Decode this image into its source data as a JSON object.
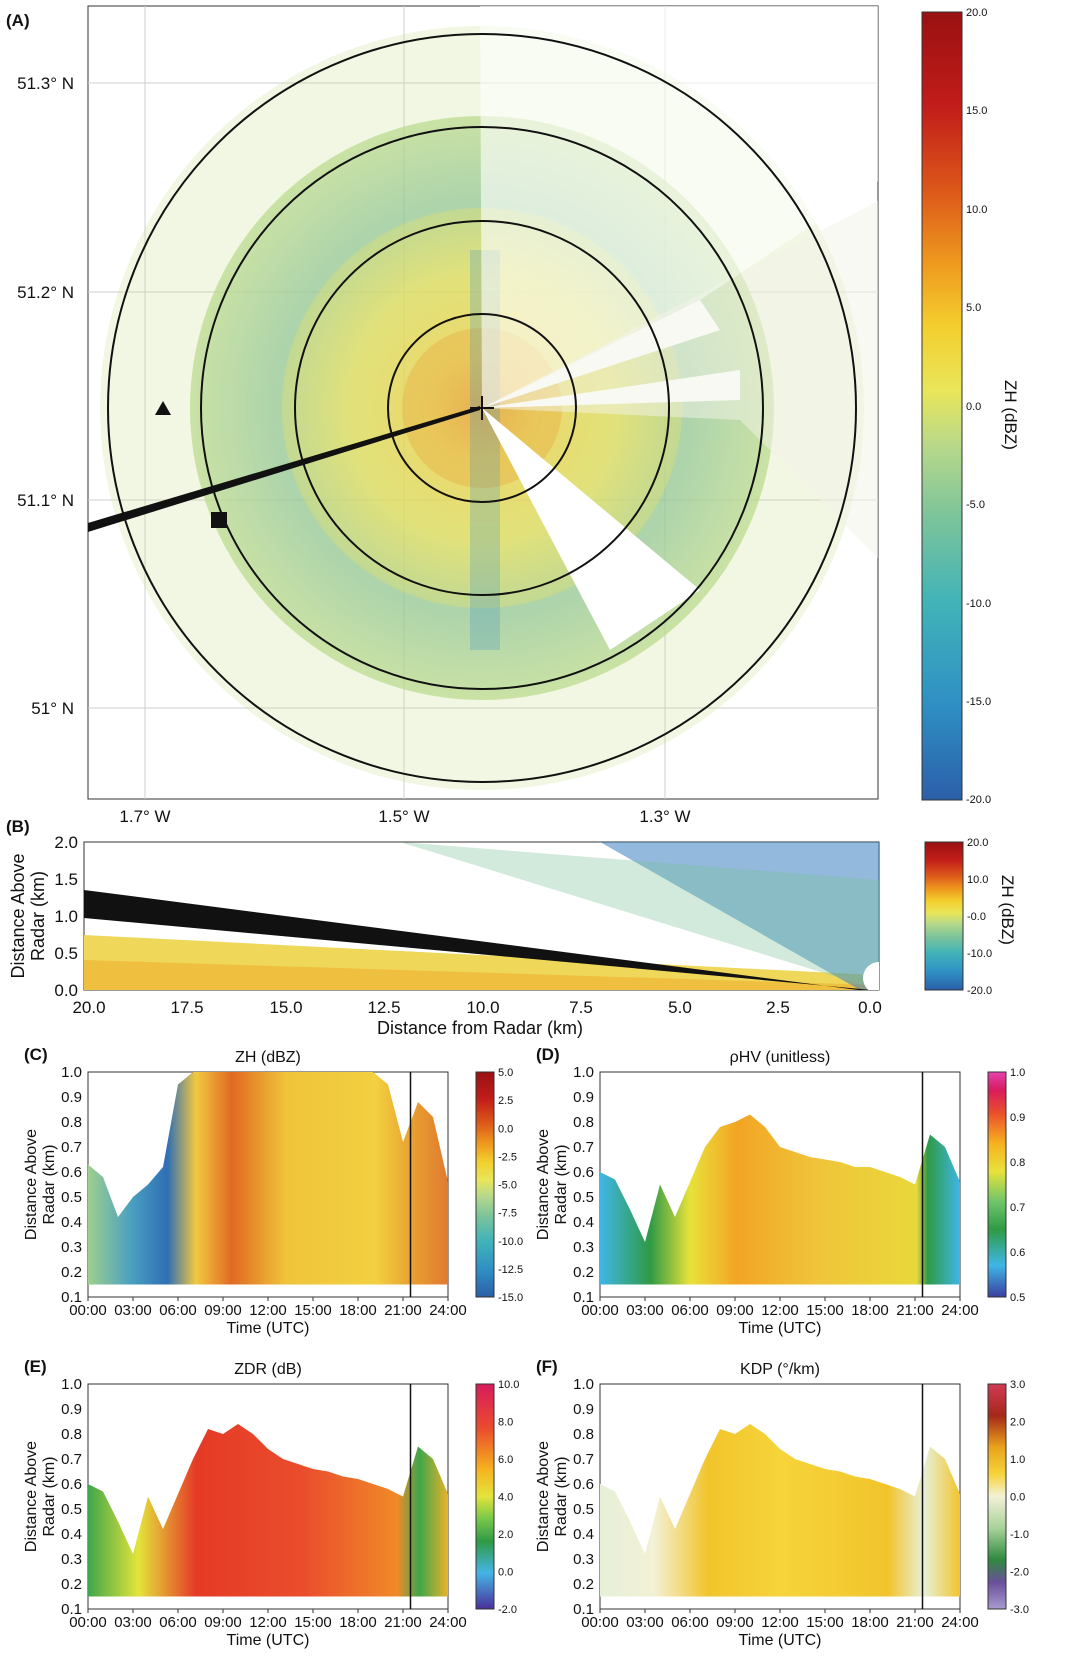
{
  "colors": {
    "dbz_scale": [
      "#2b5fa8",
      "#2f8fc4",
      "#41b3b8",
      "#7cc49a",
      "#b8d98a",
      "#e9e65a",
      "#f3cf2e",
      "#ee9a1e",
      "#dd5a1a",
      "#c21d1a",
      "#991111"
    ],
    "rhohv_scale": [
      "#3a3fa0",
      "#3fb6e6",
      "#2f9a45",
      "#6cc46a",
      "#e8e23a",
      "#f6b31e",
      "#ea4d2c",
      "#d81b5d",
      "#e642b0"
    ],
    "zdr_scale": [
      "#4a2f9a",
      "#45b4e6",
      "#2f9a45",
      "#77c74a",
      "#e3e43a",
      "#f6b31e",
      "#ea4d2c",
      "#d81b5d"
    ],
    "kdp_scale": [
      "#5b3f8a",
      "#a79ad0",
      "#2f8a3e",
      "#a8d39a",
      "#f3f1d6",
      "#f6d43a",
      "#e8a21c",
      "#a5281a",
      "#d23a55"
    ]
  },
  "panels": {
    "A": {
      "label": "(A)",
      "lat_ticks": [
        "51.3° N",
        "51.2° N",
        "51.1° N",
        "51° N"
      ],
      "lon_ticks": [
        "1.7° W",
        "1.5° W",
        "1.3° W"
      ],
      "colorbar_ticks": [
        "20.0",
        "15.0",
        "10.0",
        "5.0",
        "0.0",
        "-5.0",
        "-10.0",
        "-15.0",
        "-20.0"
      ],
      "colorbar_label": "ZH (dBZ)"
    },
    "B": {
      "label": "(B)",
      "xlabel": "Distance from Radar (km)",
      "ylabel_line1": "Distance Above",
      "ylabel_line2": "Radar (km)",
      "x_ticks": [
        "20.0",
        "17.5",
        "15.0",
        "12.5",
        "10.0",
        "7.5",
        "5.0",
        "2.5",
        "0.0"
      ],
      "y_ticks": [
        "2.0",
        "1.5",
        "1.0",
        "0.5",
        "0.0"
      ],
      "colorbar_ticks": [
        "20.0",
        "10.0",
        "-0.0",
        "-10.0",
        "-20.0"
      ],
      "colorbar_label": "ZH (dBZ)"
    },
    "C": {
      "label": "(C)",
      "title": "ZH (dBZ)",
      "cbar": [
        "5.0",
        "2.5",
        "0.0",
        "-2.5",
        "-5.0",
        "-7.5",
        "-10.0",
        "-12.5",
        "-15.0"
      ]
    },
    "D": {
      "label": "(D)",
      "title": "ρHV (unitless)",
      "cbar": [
        "1.0",
        "0.9",
        "0.8",
        "0.7",
        "0.6",
        "0.5"
      ]
    },
    "E": {
      "label": "(E)",
      "title": "ZDR (dB)",
      "cbar": [
        "10.0",
        "8.0",
        "6.0",
        "4.0",
        "2.0",
        "0.0",
        "-2.0"
      ]
    },
    "F": {
      "label": "(F)",
      "title": "KDP (°/km)",
      "cbar": [
        "3.0",
        "2.0",
        "1.0",
        "0.0",
        "-1.0",
        "-2.0",
        "-3.0"
      ]
    },
    "time_axis": {
      "xlabel": "Time (UTC)",
      "ylabel_line1": "Distance Above",
      "ylabel_line2": "Radar (km)",
      "x_ticks": [
        "00:00",
        "03:00",
        "06:00",
        "09:00",
        "12:00",
        "15:00",
        "18:00",
        "21:00",
        "24:00"
      ],
      "y_ticks": [
        "1.0",
        "0.9",
        "0.8",
        "0.7",
        "0.6",
        "0.5",
        "0.4",
        "0.3",
        "0.2",
        "0.1"
      ]
    }
  },
  "chart_data": [
    {
      "type": "heatmap",
      "title": "",
      "panel": "A",
      "xlabel": "",
      "ylabel": "",
      "x_ticks": [
        "1.7° W",
        "1.5° W",
        "1.3° W"
      ],
      "y_ticks": [
        "51.3° N",
        "51.2° N",
        "51.1° N",
        "51° N"
      ],
      "colorbar": {
        "label": "ZH (dBZ)",
        "range": [
          -20,
          20
        ]
      },
      "markers": [
        "triangle",
        "square",
        "plus"
      ],
      "range_rings": 4
    },
    {
      "type": "heatmap",
      "panel": "B",
      "xlabel": "Distance from Radar (km)",
      "ylabel": "Distance Above Radar (km)",
      "xlim": [
        20,
        0
      ],
      "ylim": [
        0,
        2
      ],
      "colorbar": {
        "label": "ZH (dBZ)",
        "range": [
          -20,
          20
        ]
      }
    },
    {
      "type": "heatmap",
      "panel": "C",
      "title": "ZH (dBZ)",
      "xlabel": "Time (UTC)",
      "ylabel": "Distance Above Radar (km)",
      "xlim": [
        0,
        24
      ],
      "ylim": [
        0.1,
        1.0
      ],
      "colorbar": {
        "range": [
          -15,
          5
        ]
      },
      "vertical_line_time": 21.5,
      "data_top_profile": {
        "x": [
          0,
          1,
          2,
          3,
          4,
          5,
          6,
          7,
          8,
          9,
          10,
          11,
          12,
          13,
          14,
          15,
          16,
          17,
          18,
          19,
          20,
          21,
          22,
          23,
          24
        ],
        "y": [
          0.63,
          0.58,
          0.42,
          0.5,
          0.55,
          0.62,
          0.95,
          1.0,
          1.0,
          1.0,
          1.0,
          1.0,
          1.0,
          1.0,
          1.0,
          1.0,
          1.0,
          1.0,
          1.0,
          1.0,
          0.95,
          0.72,
          0.88,
          0.82,
          0.56
        ]
      }
    },
    {
      "type": "heatmap",
      "panel": "D",
      "title": "ρHV (unitless)",
      "xlabel": "Time (UTC)",
      "ylabel": "Distance Above Radar (km)",
      "xlim": [
        0,
        24
      ],
      "ylim": [
        0.1,
        1.0
      ],
      "colorbar": {
        "range": [
          0.5,
          1.0
        ]
      },
      "vertical_line_time": 21.5,
      "data_top_profile": {
        "x": [
          0,
          1,
          2,
          3,
          4,
          5,
          6,
          7,
          8,
          9,
          10,
          11,
          12,
          13,
          14,
          15,
          16,
          17,
          18,
          19,
          20,
          21,
          22,
          23,
          24
        ],
        "y": [
          0.6,
          0.57,
          0.45,
          0.32,
          0.55,
          0.42,
          0.56,
          0.7,
          0.78,
          0.8,
          0.83,
          0.78,
          0.7,
          0.68,
          0.66,
          0.65,
          0.64,
          0.62,
          0.62,
          0.6,
          0.58,
          0.55,
          0.75,
          0.7,
          0.56
        ]
      }
    },
    {
      "type": "heatmap",
      "panel": "E",
      "title": "ZDR (dB)",
      "xlabel": "Time (UTC)",
      "ylabel": "Distance Above Radar (km)",
      "xlim": [
        0,
        24
      ],
      "ylim": [
        0.1,
        1.0
      ],
      "colorbar": {
        "range": [
          -2,
          10
        ]
      },
      "vertical_line_time": 21.5,
      "data_top_profile": {
        "x": [
          0,
          1,
          2,
          3,
          4,
          5,
          6,
          7,
          8,
          9,
          10,
          11,
          12,
          13,
          14,
          15,
          16,
          17,
          18,
          19,
          20,
          21,
          22,
          23,
          24
        ],
        "y": [
          0.6,
          0.57,
          0.45,
          0.32,
          0.55,
          0.42,
          0.56,
          0.7,
          0.82,
          0.8,
          0.84,
          0.8,
          0.74,
          0.7,
          0.68,
          0.66,
          0.65,
          0.63,
          0.62,
          0.6,
          0.58,
          0.55,
          0.75,
          0.7,
          0.56
        ]
      }
    },
    {
      "type": "heatmap",
      "panel": "F",
      "title": "KDP (°/km)",
      "xlabel": "Time (UTC)",
      "ylabel": "Distance Above Radar (km)",
      "xlim": [
        0,
        24
      ],
      "ylim": [
        0.1,
        1.0
      ],
      "colorbar": {
        "range": [
          -3,
          3
        ]
      },
      "vertical_line_time": 21.5,
      "data_top_profile": {
        "x": [
          0,
          1,
          2,
          3,
          4,
          5,
          6,
          7,
          8,
          9,
          10,
          11,
          12,
          13,
          14,
          15,
          16,
          17,
          18,
          19,
          20,
          21,
          22,
          23,
          24
        ],
        "y": [
          0.6,
          0.57,
          0.45,
          0.32,
          0.55,
          0.42,
          0.56,
          0.7,
          0.82,
          0.8,
          0.84,
          0.8,
          0.74,
          0.7,
          0.68,
          0.66,
          0.65,
          0.63,
          0.62,
          0.6,
          0.58,
          0.55,
          0.75,
          0.7,
          0.56
        ]
      }
    }
  ]
}
